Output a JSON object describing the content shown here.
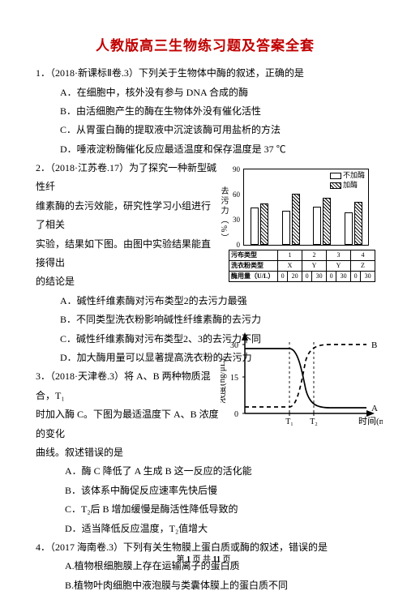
{
  "title": "人教版高三生物练习题及答案全套",
  "q1": {
    "stem": "1．（2018·新课标Ⅱ卷.3）下列关于生物体中酶的叙述，正确的是",
    "A": "A．在细胞中，核外没有参与 DNA 合成的酶",
    "B": "B．由活细胞产生的酶在生物体外没有催化活性",
    "C": "C．从胃蛋白酶的提取液中沉淀该酶可用盐析的方法",
    "D": "D．唾液淀粉酶催化反应最适温度和保存温度是 37 ℃"
  },
  "q2": {
    "stem1": "2．（2018·江苏卷.17）为了探究一种新型碱性纤",
    "stem2": "维素酶的去污效能，研究性学习小组进行了相关",
    "stem3": "实验，结果如下图。由图中实验结果能直接得出",
    "stem4": "的结论是",
    "A": "A．碱性纤维素酶对污布类型2的去污力最强",
    "B": "B．不同类型洗衣粉影响碱性纤维素酶的去污力",
    "C": "C．碱性纤维素酶对污布类型2、3的去污力不同",
    "D": "D．加大酶用量可以显著提高洗衣粉的去污力"
  },
  "q3": {
    "stem1": "3．（2018·天津卷.3）将 A、B 两种物质混合，T₁",
    "stem2": "时加入酶 C。下图为最适温度下 A、B 浓度的变化",
    "stem3": "曲线。叙述错误的是",
    "A": "A．酶 C 降低了 A 生成 B 这一反应的活化能",
    "B": "B．该体系中酶促反应速率先快后慢",
    "C": "C．T₂后 B 增加缓慢是酶活性降低导致的",
    "D": "D．适当降低反应温度，T₂值增大"
  },
  "q4": {
    "stem": "4．（2017 海南卷.3）下列有关生物膜上蛋白质或酶的叙述，错误的是",
    "A": "A.植物根细胞膜上存在运输离子的蛋白质",
    "B": "B.植物叶肉细胞中液泡膜与类囊体膜上的蛋白质不同"
  },
  "chart1": {
    "yticks": [
      0,
      30,
      60,
      90
    ],
    "ylabel": "去污力（%）",
    "legend": [
      "不加酶",
      "加酶"
    ],
    "groups": [
      {
        "no_enzyme": 44,
        "enzyme": 48
      },
      {
        "no_enzyme": 40,
        "enzyme": 60
      },
      {
        "no_enzyme": 45,
        "enzyme": 55
      },
      {
        "no_enzyme": 38,
        "enzyme": 50
      }
    ],
    "table": {
      "row1_label": "污布类型",
      "row1": [
        "1",
        "2",
        "3",
        "4"
      ],
      "row2_label": "洗衣粉类型",
      "row2": [
        "X",
        "Y",
        "Y",
        "Z"
      ],
      "row3_label": "酶用量（U/L）",
      "row3_pairs": [
        [
          "0",
          "20"
        ],
        [
          "0",
          "30"
        ],
        [
          "0",
          "30"
        ],
        [
          "0",
          "30"
        ]
      ]
    }
  },
  "chart2": {
    "y_label": "浓度(ng/μL)",
    "x_label": "时间(min)",
    "yticks": [
      "0",
      "15",
      "30"
    ],
    "T1": "T₁",
    "T2": "T₂",
    "A": "A",
    "B": "B"
  },
  "footer_a": "第 ",
  "footer_b": "1",
  "footer_c": " 页 共 ",
  "footer_d": "11",
  "footer_e": " 页"
}
